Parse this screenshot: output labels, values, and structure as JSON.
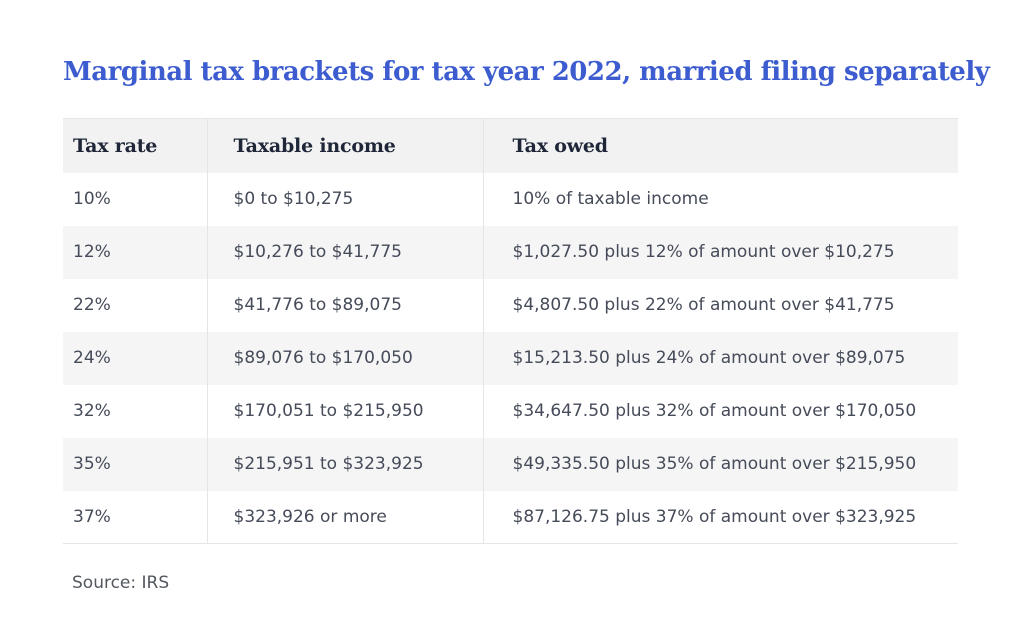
{
  "title": "Marginal tax brackets for tax year 2022, married filing separately",
  "source_label": "Source: IRS",
  "colors": {
    "title_blue": "#3c5ccf",
    "header_navy": "#1e2637",
    "body_text": "#454b58",
    "header_bg": "#f2f2f3",
    "stripe_bg": "#f5f5f6",
    "border": "#e3e5e8",
    "source_gray": "#53585f"
  },
  "table": {
    "columns": [
      "Tax rate",
      "Taxable income",
      "Tax owed"
    ],
    "rows": [
      [
        "10%",
        "$0 to $10,275",
        "10% of taxable income"
      ],
      [
        "12%",
        "$10,276 to $41,775",
        "$1,027.50 plus 12% of amount over $10,275"
      ],
      [
        "22%",
        "$41,776 to $89,075",
        "$4,807.50 plus 22% of amount over $41,775"
      ],
      [
        "24%",
        "$89,076 to $170,050",
        "$15,213.50 plus 24% of amount over $89,075"
      ],
      [
        "32%",
        "$170,051 to $215,950",
        "$34,647.50 plus 32% of amount over $170,050"
      ],
      [
        "35%",
        "$215,951 to $323,925",
        "$49,335.50 plus 35% of amount over $215,950"
      ],
      [
        "37%",
        "$323,926 or more",
        "$87,126.75 plus 37% of amount over $323,925"
      ]
    ]
  },
  "chart_data": {
    "type": "table",
    "title": "Marginal tax brackets for tax year 2022, married filing separately",
    "columns": [
      "Tax rate",
      "Taxable income",
      "Tax owed"
    ],
    "rows": [
      [
        "10%",
        "$0 to $10,275",
        "10% of taxable income"
      ],
      [
        "12%",
        "$10,276 to $41,775",
        "$1,027.50 plus 12% of amount over $10,275"
      ],
      [
        "22%",
        "$41,776 to $89,075",
        "$4,807.50 plus 22% of amount over $41,775"
      ],
      [
        "24%",
        "$89,076 to $170,050",
        "$15,213.50 plus 24% of amount over $89,075"
      ],
      [
        "32%",
        "$170,051 to $215,950",
        "$34,647.50 plus 32% of amount over $170,050"
      ],
      [
        "35%",
        "$215,951 to $323,925",
        "$49,335.50 plus 35% of amount over $215,950"
      ],
      [
        "37%",
        "$323,926 or more",
        "$87,126.75 plus 37% of amount over $323,925"
      ]
    ],
    "note": "Source: IRS"
  }
}
